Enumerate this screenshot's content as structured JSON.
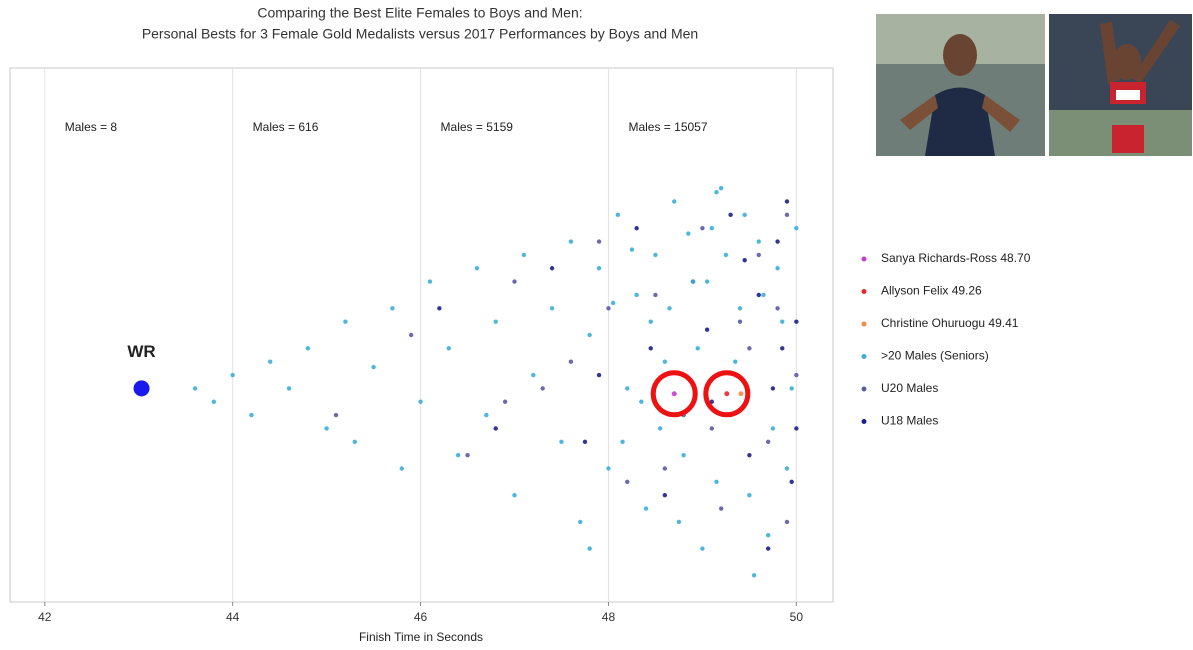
{
  "chart_data": {
    "type": "scatter",
    "title": "Comparing the Best Elite Females to Boys and Men:",
    "subtitle": "Personal Bests for 3 Female Gold Medalists versus 2017 Performances by Boys and Men",
    "xlabel": "Finish Time in Seconds",
    "xlim": [
      41.63,
      50.39
    ],
    "xticks": [
      42,
      44,
      46,
      48,
      50
    ],
    "ylim": [
      -1,
      1
    ],
    "grid": true,
    "annotations": [
      "Males = 8",
      "Males = 616",
      "Males = 5159",
      "Males = 15057"
    ],
    "wr": {
      "label": "WR",
      "x": 43.03,
      "y": -0.2,
      "color": "#1a1aee"
    },
    "series": [
      {
        "name": "Sanya Richards-Ross 48.70",
        "color": "#c33cd0",
        "x": [
          48.7
        ],
        "y": [
          -0.22
        ]
      },
      {
        "name": "Allyson Felix 49.26",
        "color": "#e02828",
        "x": [
          49.26
        ],
        "y": [
          -0.22
        ]
      },
      {
        "name": "Christine Ohuruogu 49.41",
        "color": "#f08a4b",
        "x": [
          49.41
        ],
        "y": [
          -0.22
        ]
      },
      {
        "name": ">20 Males (Seniors)",
        "color": "#3aaed8",
        "x": [
          43.6,
          43.8,
          44.0,
          44.2,
          44.4,
          44.6,
          44.8,
          45.0,
          45.2,
          45.3,
          45.5,
          45.7,
          45.8,
          46.0,
          46.1,
          46.3,
          46.4,
          46.6,
          46.7,
          46.8,
          47.0,
          47.1,
          47.2,
          47.4,
          47.5,
          47.6,
          47.7,
          47.8,
          47.9,
          48.0,
          48.1,
          48.2,
          48.3,
          48.4,
          48.5,
          48.6,
          48.7,
          48.8,
          48.9,
          49.0,
          49.1,
          49.2,
          49.3,
          49.4,
          49.5,
          49.6,
          49.7,
          49.8,
          49.9,
          50.0,
          49.95,
          49.85,
          49.75,
          49.65,
          49.55,
          49.45,
          49.35,
          49.25,
          49.15,
          49.05,
          48.95,
          48.85,
          48.75,
          48.65,
          48.55,
          48.45,
          48.35,
          48.25,
          48.15,
          48.05,
          49.15,
          47.8
        ],
        "y": [
          -0.2,
          -0.25,
          -0.15,
          -0.3,
          -0.1,
          -0.2,
          -0.05,
          -0.35,
          0.05,
          -0.4,
          -0.12,
          0.1,
          -0.5,
          -0.25,
          0.2,
          -0.05,
          -0.45,
          0.25,
          -0.3,
          0.05,
          -0.6,
          0.3,
          -0.15,
          0.1,
          -0.4,
          0.35,
          -0.7,
          0.0,
          0.25,
          -0.5,
          0.45,
          -0.2,
          0.15,
          -0.65,
          0.3,
          -0.1,
          0.5,
          -0.45,
          0.2,
          -0.8,
          0.4,
          0.55,
          -0.3,
          0.1,
          -0.6,
          0.35,
          -0.75,
          0.25,
          -0.5,
          0.4,
          -0.2,
          0.05,
          -0.35,
          0.15,
          -0.9,
          0.45,
          -0.1,
          0.3,
          -0.55,
          0.2,
          -0.05,
          0.38,
          -0.7,
          0.1,
          -0.35,
          0.05,
          -0.25,
          0.32,
          -0.4,
          0.12,
          0.535,
          -0.8
        ]
      },
      {
        "name": "U20 Males",
        "color": "#5b5aa8",
        "x": [
          45.1,
          45.9,
          46.5,
          47.0,
          47.3,
          47.9,
          48.2,
          48.5,
          48.8,
          49.0,
          49.2,
          49.4,
          49.6,
          49.7,
          49.8,
          49.9,
          50.0,
          49.9,
          49.5,
          49.1,
          48.6,
          48.0,
          47.6,
          46.9
        ],
        "y": [
          -0.3,
          0.0,
          -0.45,
          0.2,
          -0.2,
          0.35,
          -0.55,
          0.15,
          -0.3,
          0.4,
          -0.65,
          0.05,
          0.3,
          -0.4,
          0.1,
          -0.7,
          -0.15,
          0.45,
          -0.05,
          -0.35,
          -0.5,
          0.1,
          -0.1,
          -0.25
        ]
      },
      {
        "name": "U18 Males",
        "color": "#1c1f8a",
        "x": [
          46.2,
          46.8,
          47.4,
          47.9,
          48.3,
          48.6,
          48.9,
          49.1,
          49.3,
          49.5,
          49.6,
          49.7,
          49.8,
          49.85,
          49.9,
          49.95,
          50.0,
          50.0,
          49.75,
          49.45,
          49.05,
          48.45,
          47.75
        ],
        "y": [
          0.1,
          -0.35,
          0.25,
          -0.15,
          0.4,
          -0.6,
          0.2,
          -0.25,
          0.45,
          -0.45,
          0.15,
          -0.8,
          0.35,
          -0.05,
          0.5,
          -0.55,
          0.05,
          -0.35,
          -0.2,
          0.28,
          0.02,
          -0.05,
          -0.4
        ]
      }
    ]
  }
}
